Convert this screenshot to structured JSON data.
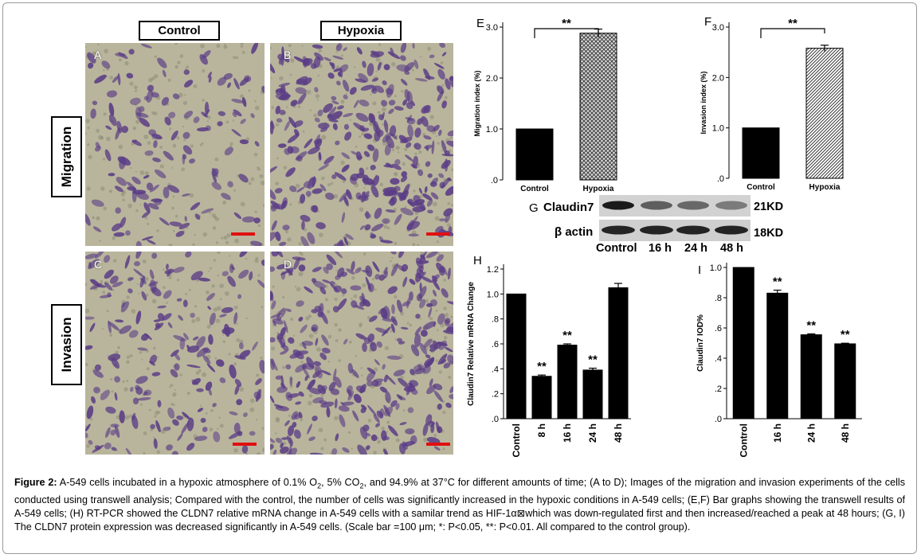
{
  "column_labels": [
    "Control",
    "Hypoxia"
  ],
  "row_labels": [
    "Migration",
    "Invasion"
  ],
  "panel_letters": [
    "A",
    "B",
    "C",
    "D"
  ],
  "blot": {
    "panel_letter": "G",
    "rows": [
      {
        "name": "Claudin7",
        "size": "21KD"
      },
      {
        "name": "β actin",
        "size": "18KD"
      }
    ],
    "lanes": [
      "Control",
      "16 h",
      "24 h",
      "48 h"
    ]
  },
  "colors": {
    "bars": "#000000",
    "scale_bar": "#e01010",
    "micro_bg": "#b9b59c",
    "cells": "#5a3c86"
  },
  "caption": {
    "label": "Figure 2:",
    "text_1": " A-549 cells incubated in a hypoxic atmosphere of 0.1% O",
    "sub_1": "2",
    "text_2": ", 5% CO",
    "sub_2": "2",
    "text_3": ", and 94.9% at 37°C for different amounts of time; (A to D); Images of the migration and invasion experiments of the cells conducted using transwell analysis; Compared with the control, the number of cells was significantly increased in the hypoxic conditions in A-549 cells; (E,F) Bar graphs showing the transwell results of A-549 cells; (H) RT-PCR showed the CLDN7 relative mRNA change in A-549 cells with a samilar trend as HIF-1α",
    "glyph": "⊠",
    "text_4": "which was down-regulated first and then increased/reached a peak at 48 hours; (G, I) The CLDN7 protein expression was decreased significantly in A-549 cells. (Scale bar =100 μm; *: P<0.05, **: P<0.01. All compared to the control group)."
  },
  "chart_data": [
    {
      "id": "E",
      "type": "bar",
      "categories": [
        "Control",
        "Hypoxia"
      ],
      "values": [
        1.0,
        2.88
      ],
      "errors": [
        0,
        0.08
      ],
      "ylabel": "Migration index (%)",
      "yticks": [
        ".0",
        "1.0",
        "2.0",
        "3.0"
      ],
      "ylim": [
        0,
        3.0
      ],
      "annotation": "**",
      "fills": [
        "solid",
        "crosshatch"
      ]
    },
    {
      "id": "F",
      "type": "bar",
      "categories": [
        "Control",
        "Hypoxia"
      ],
      "values": [
        1.0,
        2.58
      ],
      "errors": [
        0,
        0.06
      ],
      "ylabel": "Invasion index (%)",
      "yticks": [
        ".0",
        "1.0",
        "2.0",
        "3.0"
      ],
      "ylim": [
        0,
        3.0
      ],
      "annotation": "**",
      "fills": [
        "solid",
        "diagonal"
      ]
    },
    {
      "id": "H",
      "type": "bar",
      "categories": [
        "Control",
        "8 h",
        "16 h",
        "24 h",
        "48 h"
      ],
      "values": [
        1.0,
        0.34,
        0.59,
        0.39,
        1.05
      ],
      "errors": [
        0,
        0.01,
        0.01,
        0.015,
        0.035
      ],
      "annotations": [
        "",
        "**",
        "**",
        "**",
        ""
      ],
      "ylabel": "Claudin7 Relative mRNA Change",
      "yticks": [
        ".0",
        ".2",
        ".4",
        ".6",
        ".8",
        "1.0",
        "1.2"
      ],
      "ylim": [
        0,
        1.2
      ]
    },
    {
      "id": "I",
      "type": "bar",
      "categories": [
        "Control",
        "16 h",
        "24 h",
        "48 h"
      ],
      "values": [
        1.0,
        0.83,
        0.555,
        0.495
      ],
      "errors": [
        0,
        0.02,
        0.006,
        0.004
      ],
      "annotations": [
        "",
        "**",
        "**",
        "**"
      ],
      "ylabel": "Claudin7 IOD%",
      "yticks": [
        ".0",
        ".2",
        ".4",
        ".6",
        ".8",
        "1.0"
      ],
      "ylim": [
        0,
        1.0
      ]
    }
  ]
}
